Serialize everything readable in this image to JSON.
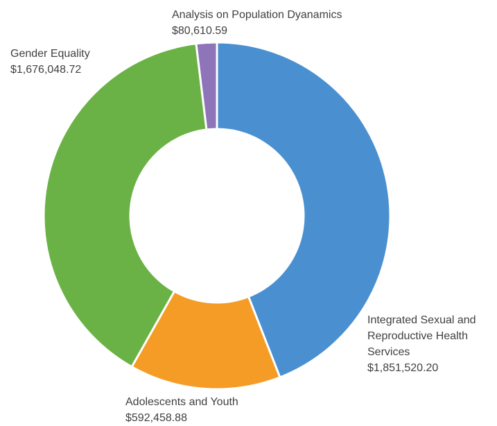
{
  "chart_data": {
    "type": "pie",
    "variant": "donut",
    "title": "",
    "slices": [
      {
        "label": "Integrated Sexual and Reproductive Health Services",
        "label_lines": [
          "Integrated Sexual and",
          "Reproductive Health",
          "Services"
        ],
        "value_text": "$1,851,520.20",
        "value": 1851520.2,
        "color": "#4a90d1"
      },
      {
        "label": "Adolescents and Youth",
        "label_lines": [
          "Adolescents and Youth"
        ],
        "value_text": "$592,458.88",
        "value": 592458.88,
        "color": "#f49c26"
      },
      {
        "label": "Gender Equality",
        "label_lines": [
          "Gender Equality"
        ],
        "value_text": "$1,676,048.72",
        "value": 1676048.72,
        "color": "#6ab245"
      },
      {
        "label": "Analysis on Population Dyanamics",
        "label_lines": [
          "Analysis on Population Dyanamics"
        ],
        "value_text": "$80,610.59",
        "value": 80610.59,
        "color": "#8e74b8"
      }
    ]
  }
}
